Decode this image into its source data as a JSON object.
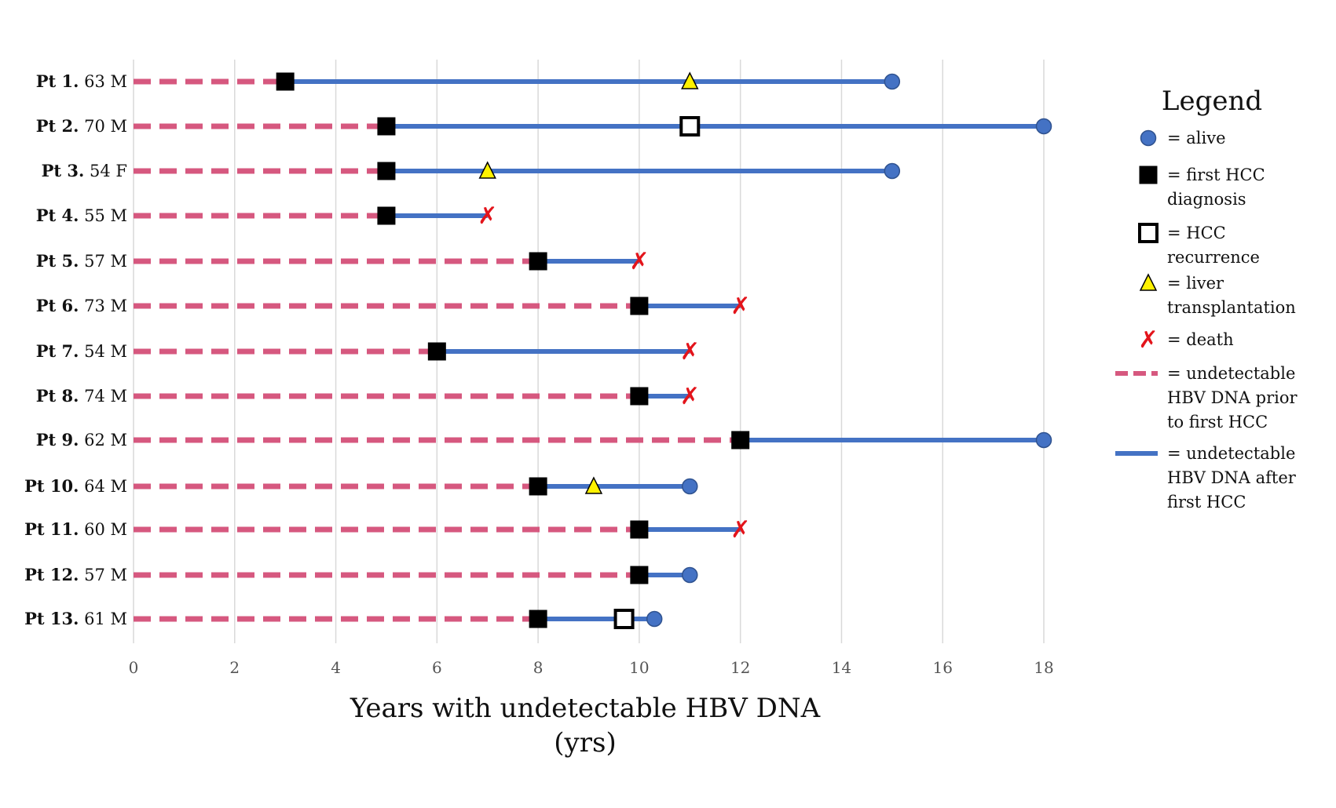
{
  "chart_data": {
    "type": "timeline",
    "xlabel_line1": "Years with undetectable HBV DNA",
    "xlabel_line2": "(yrs)",
    "xlim": [
      0,
      18
    ],
    "xticks": [
      0,
      2,
      4,
      6,
      8,
      10,
      12,
      14,
      16,
      18
    ],
    "grid": true,
    "colors": {
      "pre_hcc": "#D6587F",
      "post_hcc": "#4472C4",
      "first_hcc": "#000000",
      "death": "#E3141B",
      "transplant": "#FFF200",
      "alive": "#4472C4"
    },
    "patients": [
      {
        "id": "Pt 1.",
        "info": "63 M",
        "first_hcc": 3,
        "end": 15,
        "outcome": "alive",
        "transplant": 11,
        "recurrence": null
      },
      {
        "id": "Pt 2.",
        "info": "70 M",
        "first_hcc": 5,
        "end": 18,
        "outcome": "alive",
        "transplant": null,
        "recurrence": 11
      },
      {
        "id": "Pt 3.",
        "info": "54 F",
        "first_hcc": 5,
        "end": 15,
        "outcome": "alive",
        "transplant": 7,
        "recurrence": null
      },
      {
        "id": "Pt 4.",
        "info": "55 M",
        "first_hcc": 5,
        "end": 7,
        "outcome": "death",
        "transplant": null,
        "recurrence": null
      },
      {
        "id": "Pt 5.",
        "info": "57 M",
        "first_hcc": 8,
        "end": 10,
        "outcome": "death",
        "transplant": null,
        "recurrence": null
      },
      {
        "id": "Pt 6.",
        "info": "73 M",
        "first_hcc": 10,
        "end": 12,
        "outcome": "death",
        "transplant": null,
        "recurrence": null
      },
      {
        "id": "Pt 7.",
        "info": "54 M",
        "first_hcc": 6,
        "end": 11,
        "outcome": "death",
        "transplant": null,
        "recurrence": null
      },
      {
        "id": "Pt 8.",
        "info": "74 M",
        "first_hcc": 10,
        "end": 11,
        "outcome": "death",
        "transplant": null,
        "recurrence": null
      },
      {
        "id": "Pt 9.",
        "info": "62 M",
        "first_hcc": 12,
        "end": 18,
        "outcome": "alive",
        "transplant": null,
        "recurrence": null
      },
      {
        "id": "Pt 10.",
        "info": "64 M",
        "first_hcc": 8,
        "end": 11,
        "outcome": "alive",
        "transplant": 9.1,
        "recurrence": null
      },
      {
        "id": "Pt 11.",
        "info": "60 M",
        "first_hcc": 10,
        "end": 12,
        "outcome": "death",
        "transplant": null,
        "recurrence": null
      },
      {
        "id": "Pt 12.",
        "info": "57 M",
        "first_hcc": 10,
        "end": 11,
        "outcome": "alive",
        "transplant": null,
        "recurrence": null
      },
      {
        "id": "Pt 13.",
        "info": "61 M",
        "first_hcc": 8,
        "end": 10.3,
        "outcome": "alive",
        "transplant": null,
        "recurrence": 9.7
      }
    ],
    "legend": {
      "title": "Legend",
      "placement": "right",
      "items": [
        {
          "key": "alive",
          "lines": [
            "= alive"
          ]
        },
        {
          "key": "first_hcc",
          "lines": [
            "= first HCC",
            "diagnosis"
          ]
        },
        {
          "key": "recurrence",
          "lines": [
            "= HCC",
            "recurrence"
          ]
        },
        {
          "key": "transplant",
          "lines": [
            "= liver",
            "transplantation"
          ]
        },
        {
          "key": "death",
          "lines": [
            "= death"
          ]
        },
        {
          "key": "pre_hcc",
          "lines": [
            "= undetectable",
            "HBV DNA prior",
            "to first HCC"
          ]
        },
        {
          "key": "post_hcc",
          "lines": [
            "= undetectable",
            "HBV DNA after",
            "first HCC"
          ]
        }
      ]
    }
  }
}
